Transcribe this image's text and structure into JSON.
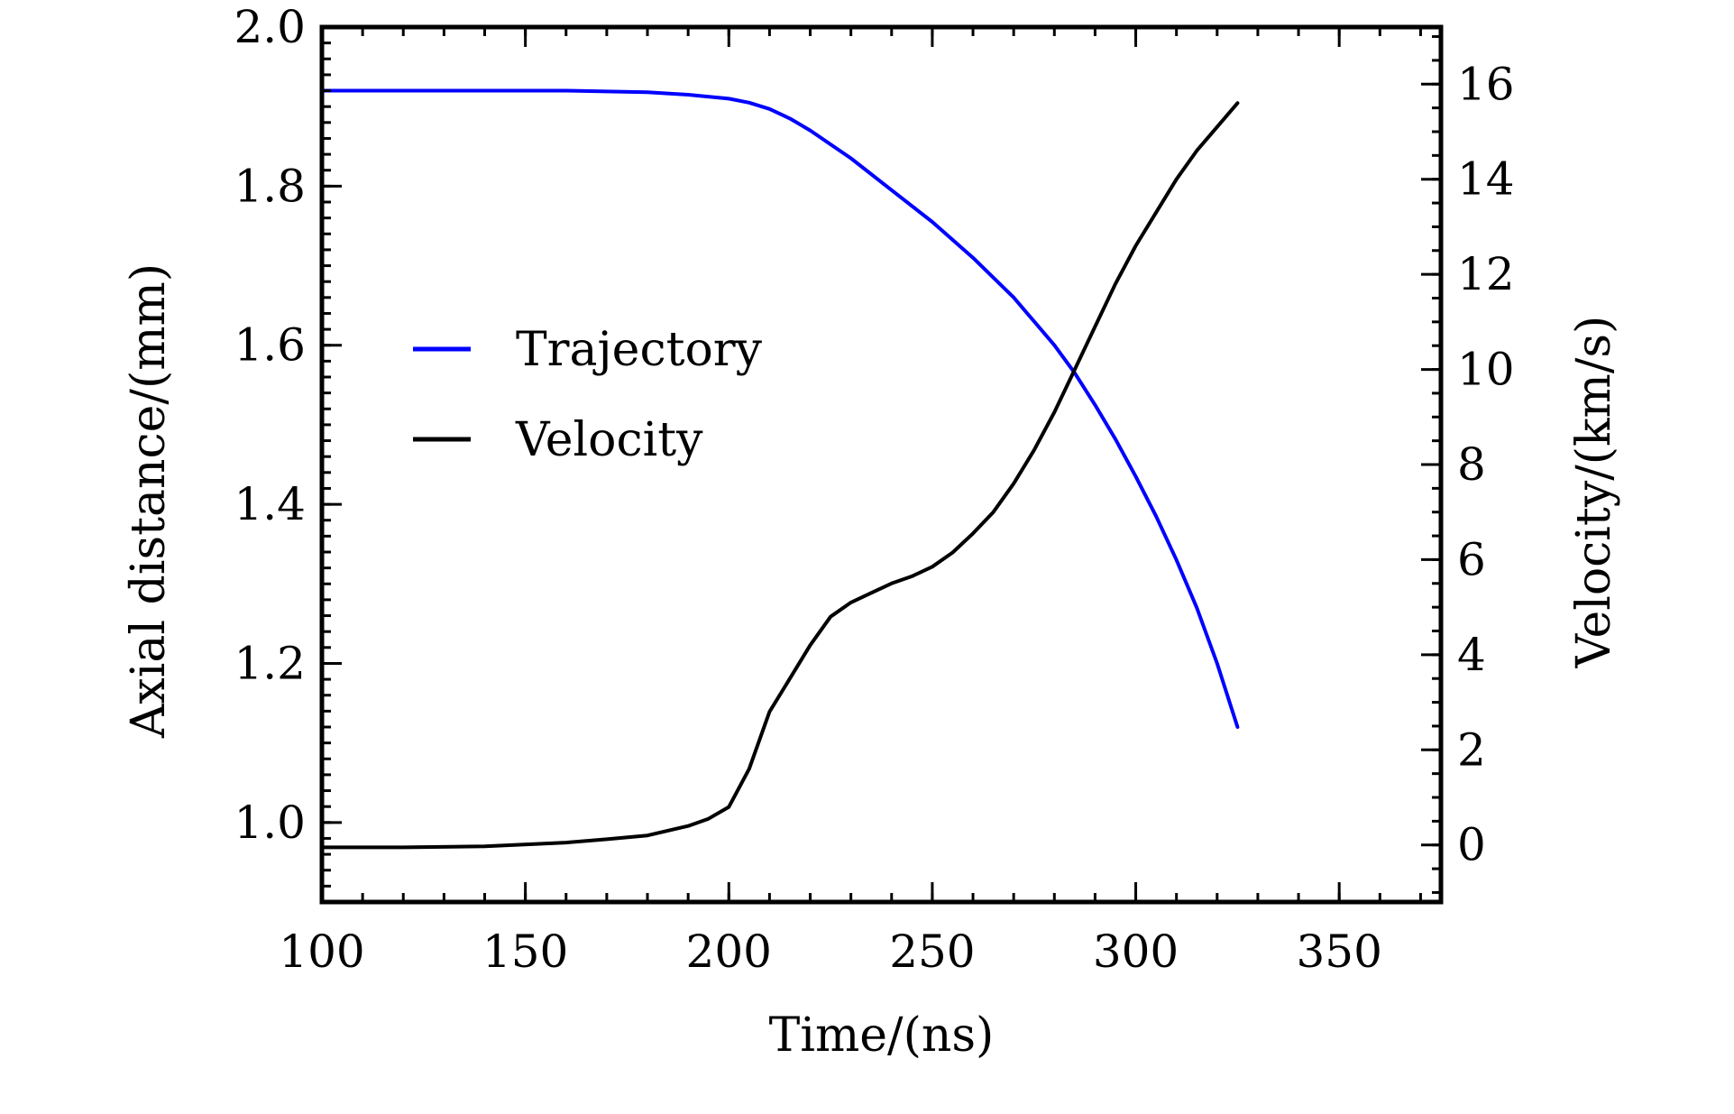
{
  "chart_data": {
    "type": "line",
    "title": "",
    "xlabel": "Time/(ns)",
    "ylabel_left": "Axial distance/(mm)",
    "ylabel_right": "Velocity/(km/s)",
    "xlim": [
      100,
      375
    ],
    "ylim_left": [
      0.9,
      2.0
    ],
    "ylim_right": [
      -1.2,
      17.2
    ],
    "xticks": [
      "100",
      "150",
      "200",
      "250",
      "300",
      "350"
    ],
    "yticks_left": [
      "1.0",
      "1.2",
      "1.4",
      "1.6",
      "1.8",
      "2.0"
    ],
    "yticks_right": [
      "0",
      "2",
      "4",
      "6",
      "8",
      "10",
      "12",
      "14",
      "16"
    ],
    "grid": false,
    "legend_position": "center-left",
    "series": [
      {
        "name": "Trajectory",
        "axis": "left",
        "color": "#0000ff",
        "x": [
          100,
          120,
          140,
          160,
          180,
          190,
          200,
          205,
          210,
          215,
          220,
          230,
          240,
          250,
          260,
          270,
          280,
          285,
          290,
          295,
          300,
          305,
          310,
          315,
          320,
          325
        ],
        "y": [
          1.92,
          1.92,
          1.92,
          1.92,
          1.918,
          1.915,
          1.91,
          1.905,
          1.897,
          1.885,
          1.87,
          1.835,
          1.795,
          1.755,
          1.71,
          1.66,
          1.6,
          1.565,
          1.525,
          1.482,
          1.435,
          1.385,
          1.33,
          1.27,
          1.2,
          1.12
        ]
      },
      {
        "name": "Velocity",
        "axis": "right",
        "color": "#000000",
        "x": [
          100,
          120,
          140,
          160,
          170,
          180,
          190,
          195,
          200,
          205,
          210,
          215,
          220,
          225,
          230,
          235,
          240,
          245,
          250,
          255,
          260,
          265,
          270,
          275,
          280,
          285,
          290,
          295,
          300,
          305,
          310,
          315,
          320,
          325
        ],
        "y": [
          -0.05,
          -0.05,
          -0.03,
          0.05,
          0.12,
          0.2,
          0.4,
          0.55,
          0.8,
          1.6,
          2.8,
          3.5,
          4.2,
          4.8,
          5.1,
          5.3,
          5.5,
          5.65,
          5.85,
          6.15,
          6.55,
          7.0,
          7.6,
          8.3,
          9.1,
          10.0,
          10.9,
          11.8,
          12.6,
          13.3,
          14.0,
          14.6,
          15.1,
          15.6
        ]
      }
    ]
  }
}
